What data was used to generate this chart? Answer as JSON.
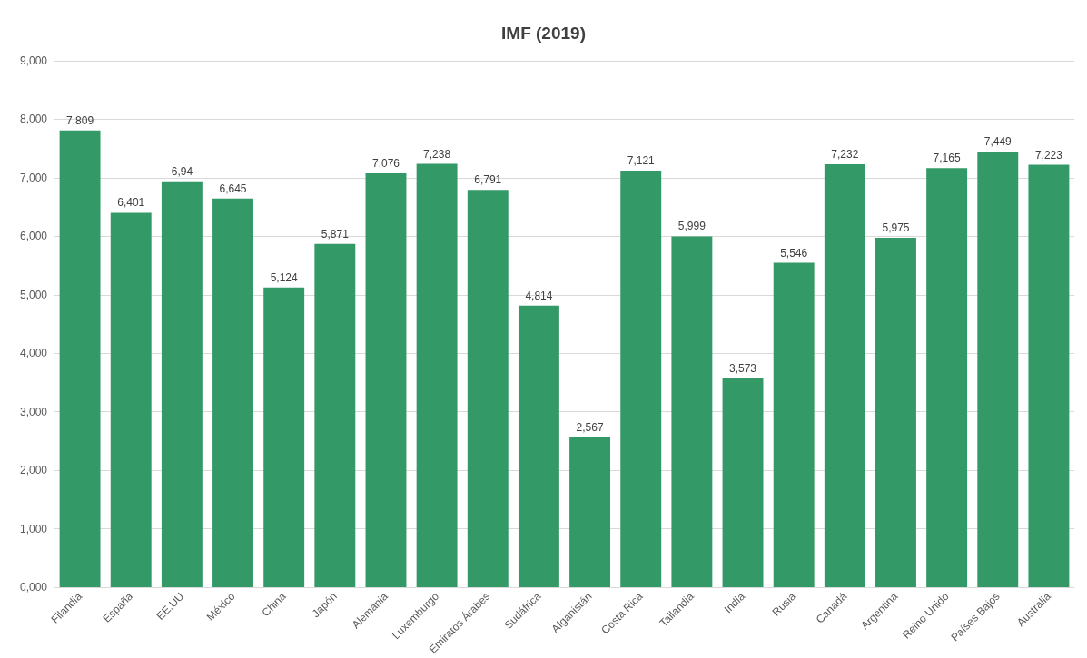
{
  "chart_data": {
    "type": "bar",
    "title": "IMF (2019)",
    "categories": [
      "Filandia",
      "España",
      "EE.UU",
      "México",
      "China",
      "Japón",
      "Alemania",
      "Luxemburgo",
      "Emiratos Árabes",
      "Sudáfrica",
      "Afganistán",
      "Costa Rica",
      "Tailandia",
      "India",
      "Rusia",
      "Canadá",
      "Argentina",
      "Reino Unido",
      "Países Bajos",
      "Australia"
    ],
    "values": [
      7.809,
      6.401,
      6.94,
      6.645,
      5.124,
      5.871,
      7.076,
      7.238,
      6.791,
      4.814,
      2.567,
      7.121,
      5.999,
      3.573,
      5.546,
      7.232,
      5.975,
      7.165,
      7.449,
      7.223
    ],
    "value_labels": [
      "7,809",
      "6,401",
      "6,94",
      "6,645",
      "5,124",
      "5,871",
      "7,076",
      "7,238",
      "6,791",
      "4,814",
      "2,567",
      "7,121",
      "5,999",
      "3,573",
      "5,546",
      "7,232",
      "5,975",
      "7,165",
      "7,449",
      "7,223"
    ],
    "color": "#339966",
    "ylim": [
      0,
      9
    ],
    "yticks": [
      {
        "value": 0,
        "label": "0,000"
      },
      {
        "value": 1,
        "label": "1,000"
      },
      {
        "value": 2,
        "label": "2,000"
      },
      {
        "value": 3,
        "label": "3,000"
      },
      {
        "value": 4,
        "label": "4,000"
      },
      {
        "value": 5,
        "label": "5,000"
      },
      {
        "value": 6,
        "label": "6,000"
      },
      {
        "value": 7,
        "label": "7,000"
      },
      {
        "value": 8,
        "label": "8,000"
      },
      {
        "value": 9,
        "label": "9,000"
      }
    ],
    "grid": "y"
  }
}
